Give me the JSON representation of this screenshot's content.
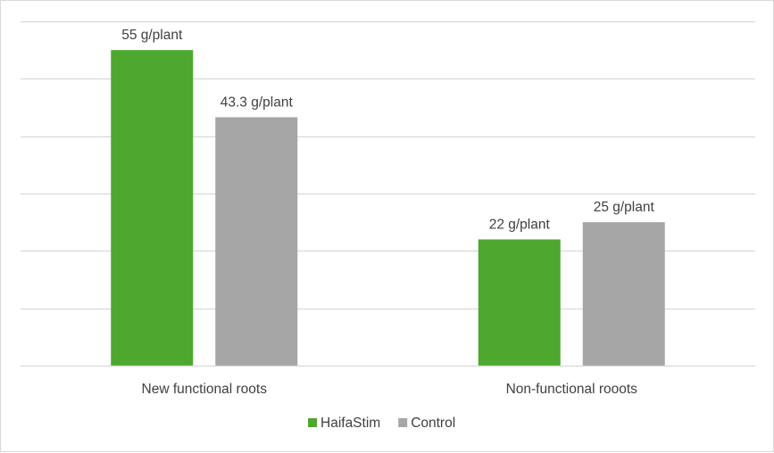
{
  "chart_data": {
    "type": "bar",
    "title": "",
    "xlabel": "",
    "ylabel": "",
    "categories": [
      "New functional roots",
      "Non-functional rooots"
    ],
    "series": [
      {
        "name": "HaifaStim",
        "color": "#4ea72e",
        "values": [
          55,
          22
        ],
        "labels": [
          "55 g/plant",
          "22 g/plant"
        ]
      },
      {
        "name": "Control",
        "color": "#a6a6a6",
        "values": [
          43.3,
          25
        ],
        "labels": [
          "43.3 g/plant",
          "25 g/plant"
        ]
      }
    ],
    "ylim": [
      0,
      60
    ],
    "gridlines": true,
    "y_axis_labels_shown": false,
    "legend": "bottom-center"
  }
}
